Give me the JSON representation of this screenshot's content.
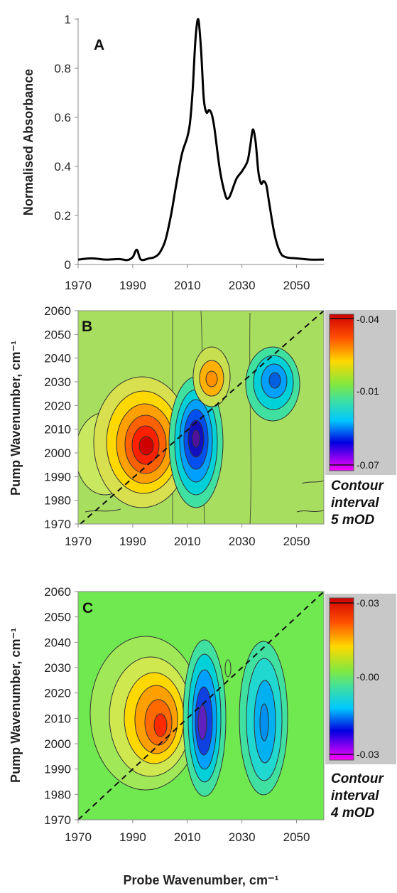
{
  "chart_data": [
    {
      "type": "line",
      "panel_label": "A",
      "ylabel": "Normalised Absorbance",
      "xlim": [
        1970,
        2060
      ],
      "ylim": [
        0,
        1
      ],
      "x_ticks": [
        "1970",
        "1990",
        "2010",
        "2030",
        "2050"
      ],
      "y_ticks": [
        "0",
        "0.2",
        "0.4",
        "0.6",
        "0.8",
        "1"
      ],
      "series": [
        {
          "x": [
            1970,
            1975,
            1980,
            1985,
            1988,
            1990,
            1991.5,
            1993,
            1996,
            1998,
            2000,
            2002,
            2004,
            2006,
            2008,
            2010,
            2011,
            2012,
            2013,
            2014,
            2015,
            2016,
            2017,
            2018,
            2019,
            2020,
            2022,
            2024,
            2025,
            2026,
            2028,
            2030,
            2032,
            2033,
            2034,
            2035,
            2036,
            2037,
            2038,
            2039,
            2040,
            2042,
            2044,
            2046,
            2050,
            2055,
            2060
          ],
          "y": [
            0.02,
            0.025,
            0.02,
            0.022,
            0.018,
            0.03,
            0.06,
            0.02,
            0.025,
            0.03,
            0.05,
            0.1,
            0.2,
            0.33,
            0.45,
            0.52,
            0.58,
            0.72,
            0.92,
            1.0,
            0.88,
            0.68,
            0.62,
            0.63,
            0.61,
            0.55,
            0.38,
            0.28,
            0.27,
            0.29,
            0.35,
            0.38,
            0.42,
            0.48,
            0.55,
            0.5,
            0.38,
            0.33,
            0.34,
            0.32,
            0.25,
            0.12,
            0.05,
            0.03,
            0.025,
            0.02,
            0.02
          ]
        }
      ]
    },
    {
      "type": "heatmap",
      "panel_label": "B",
      "xlabel": "",
      "ylabel": "Pump Wavenumber, cm⁻¹",
      "xlim": [
        1970,
        2060
      ],
      "ylim": [
        1970,
        2060
      ],
      "x_ticks": [
        "1970",
        "1990",
        "2010",
        "2030",
        "2050"
      ],
      "y_ticks": [
        "1970",
        "1980",
        "1990",
        "2000",
        "2010",
        "2020",
        "2030",
        "2040",
        "2050",
        "2060"
      ],
      "colorbar_ticks": [
        "-0.04",
        "-0.01",
        "-0.07"
      ],
      "note": [
        "Contour",
        "interval",
        "5 mOD"
      ],
      "features": [
        {
          "x": 2000,
          "y": 2013,
          "value": 0.04
        },
        {
          "x": 2013,
          "y": 2013,
          "value": -0.07
        },
        {
          "x": 2017,
          "y": 2034,
          "value": 0.015
        },
        {
          "x": 2033,
          "y": 2033,
          "value": -0.03
        },
        {
          "x": 1979,
          "y": 2006,
          "value": 0.008
        }
      ]
    },
    {
      "type": "heatmap",
      "panel_label": "C",
      "xlabel": "Probe Wavenumber, cm⁻¹",
      "ylabel": "Pump Wavenumber, cm⁻¹",
      "xlim": [
        1970,
        2060
      ],
      "ylim": [
        1970,
        2060
      ],
      "x_ticks": [
        "1970",
        "1990",
        "2010",
        "2030",
        "2050"
      ],
      "y_ticks": [
        "1970",
        "1980",
        "1990",
        "2000",
        "2010",
        "2020",
        "2030",
        "2040",
        "2050",
        "2060"
      ],
      "colorbar_ticks": [
        "-0.03",
        "-0.00",
        "-0.03"
      ],
      "note": [
        "Contour",
        "interval",
        "4 mOD"
      ],
      "features": [
        {
          "x": 2000,
          "y": 2015,
          "value": 0.03
        },
        {
          "x": 2014,
          "y": 2015,
          "value": -0.03
        },
        {
          "x": 2034,
          "y": 2018,
          "value": -0.015
        }
      ]
    }
  ]
}
